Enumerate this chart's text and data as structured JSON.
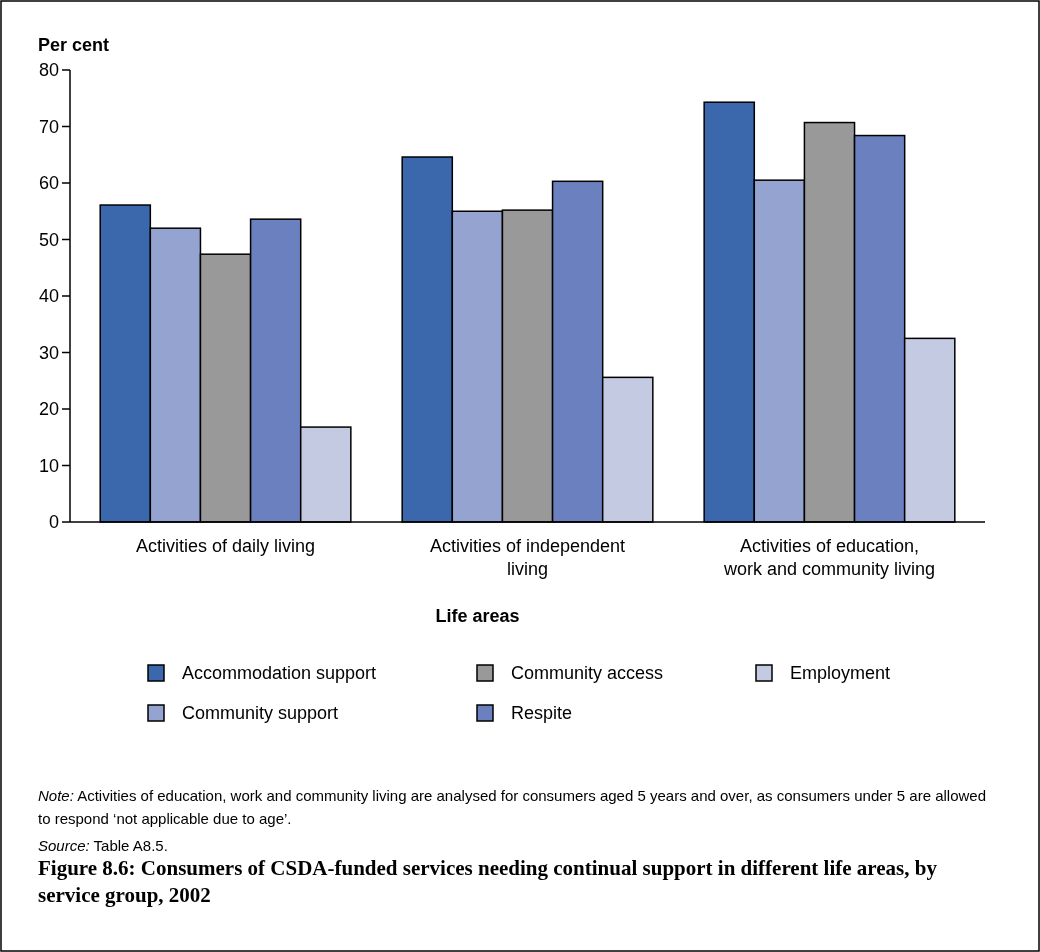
{
  "chart_data": {
    "type": "bar",
    "title": "Figure 8.6: Consumers of CSDA-funded services needing continual support in different life areas, by service group, 2002",
    "ylabel": "Per cent",
    "xlabel": "Life areas",
    "categories": [
      "Activities of daily living",
      "Activities of independent living",
      "Activities of education, work and community living"
    ],
    "series": [
      {
        "name": "Accommodation support",
        "color": "#3b67ad",
        "values": [
          56.1,
          64.6,
          74.3
        ]
      },
      {
        "name": "Community support",
        "color": "#95a3d0",
        "values": [
          52.0,
          55.0,
          60.5
        ]
      },
      {
        "name": "Community access",
        "color": "#999999",
        "values": [
          47.4,
          55.2,
          70.7
        ]
      },
      {
        "name": "Respite",
        "color": "#6a80bf",
        "values": [
          53.6,
          60.3,
          68.4
        ]
      },
      {
        "name": "Employment",
        "color": "#c5cae3",
        "values": [
          16.8,
          25.6,
          32.5
        ]
      }
    ],
    "ylim": [
      0,
      80
    ],
    "yticks": [
      0,
      10,
      20,
      30,
      40,
      50,
      60,
      70,
      80
    ],
    "grid": false,
    "legend": "bottom",
    "annotations": [
      "Note: Activities of education, work and community living are analysed for consumers aged 5 years and over, as consumers under 5 are allowed to respond ‘not applicable due to age’.",
      "Source: Table A8.5."
    ]
  }
}
